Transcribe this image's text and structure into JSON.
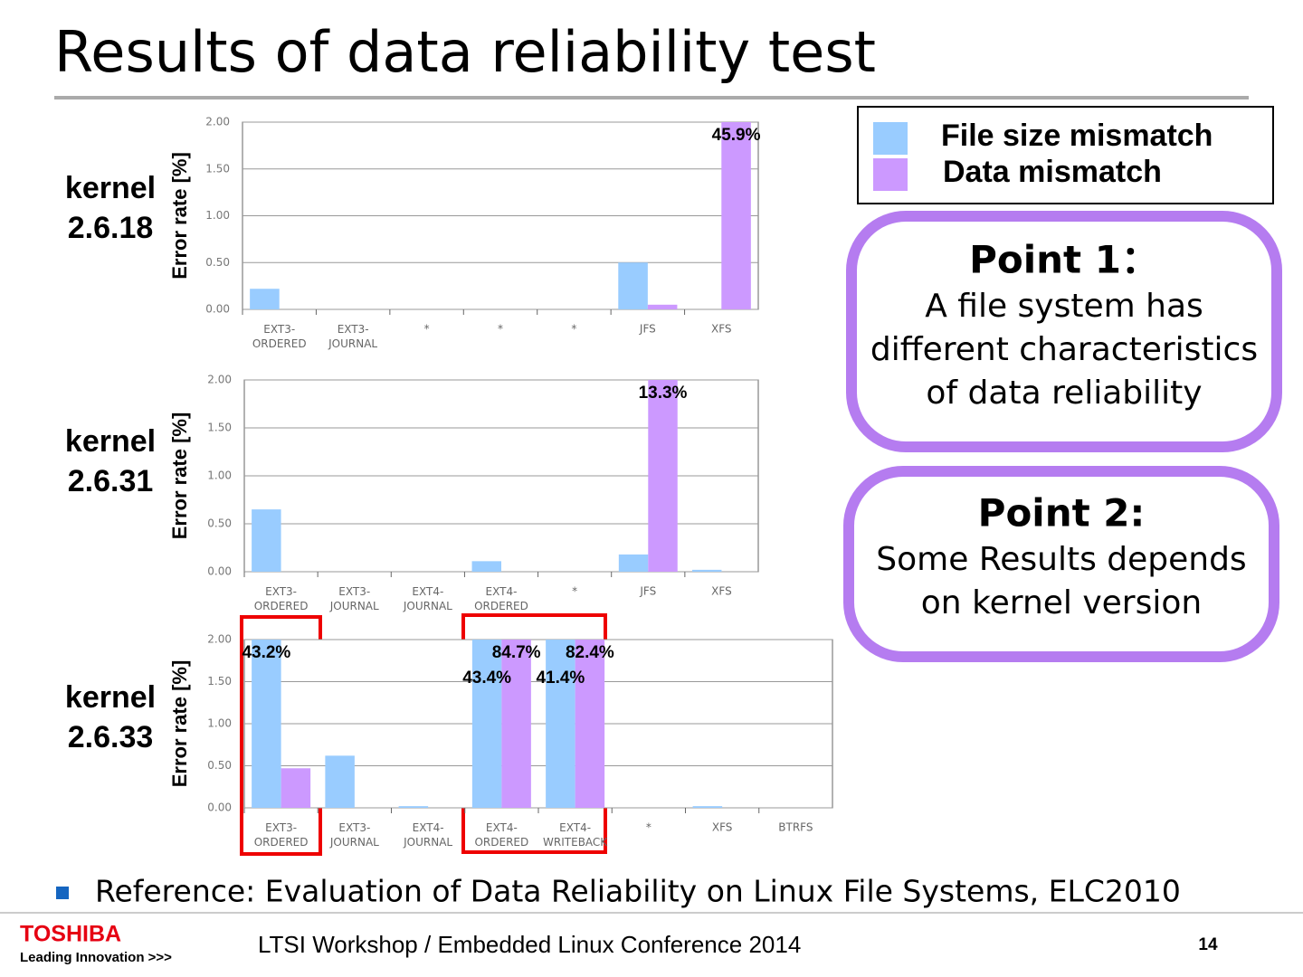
{
  "slide": {
    "title": "Results of data reliability test",
    "points": [
      {
        "heading": "Point 1：",
        "body": "A file system has\ndifferent characteristics\nof data reliability"
      },
      {
        "heading": "Point 2:",
        "body": "Some Results depends\non kernel version"
      }
    ],
    "reference": "Reference: Evaluation of Data Reliability on Linux File Systems, ELC2010",
    "logo": "TOSHIBA",
    "tagline": "Leading Innovation >>>",
    "footer": "LTSI Workshop / Embedded Linux Conference 2014",
    "page": "14"
  },
  "chart_data": [
    {
      "type": "bar",
      "title": "kernel\n2.6.18",
      "ylabel": "Error rate [%]",
      "categories": [
        "EXT3-\nORDERED",
        "EXT3-\nJOURNAL",
        "*",
        "*",
        "*",
        "JFS",
        "XFS"
      ],
      "series": [
        {
          "name": "File size mismatch",
          "color": "#99ccff",
          "values": [
            0.22,
            0,
            0,
            0,
            0,
            0.5,
            0
          ]
        },
        {
          "name": "Data mismatch",
          "color": "#cc99ff",
          "values": [
            0,
            0,
            0,
            0,
            0,
            0.05,
            45.9
          ],
          "value_labels": [
            null,
            null,
            null,
            null,
            null,
            null,
            "45.9%"
          ]
        }
      ],
      "ylim": [
        0,
        2
      ],
      "yticks": [
        {
          "value": 0,
          "label": "0.00"
        },
        {
          "value": 0.5,
          "label": "0.50"
        },
        {
          "value": 1,
          "label": "1.00"
        },
        {
          "value": 1.5,
          "label": "1.50"
        },
        {
          "value": 2,
          "label": "2.00"
        }
      ],
      "grid": true
    },
    {
      "type": "bar",
      "title": "kernel\n2.6.31",
      "ylabel": "Error rate [%]",
      "categories": [
        "EXT3-\nORDERED",
        "EXT3-\nJOURNAL",
        "EXT4-\nJOURNAL",
        "EXT4-\nORDERED",
        "*",
        "JFS",
        "XFS"
      ],
      "series": [
        {
          "name": "File size mismatch",
          "color": "#99ccff",
          "values": [
            0.65,
            0,
            0,
            0.11,
            0,
            0.18,
            0.02
          ]
        },
        {
          "name": "Data mismatch",
          "color": "#cc99ff",
          "values": [
            0,
            0,
            0,
            0,
            0,
            13.3,
            0
          ],
          "value_labels": [
            null,
            null,
            null,
            null,
            null,
            "13.3%",
            null
          ]
        }
      ],
      "ylim": [
        0,
        2
      ],
      "yticks": [
        {
          "value": 0,
          "label": "0.00"
        },
        {
          "value": 0.5,
          "label": "0.50"
        },
        {
          "value": 1,
          "label": "1.00"
        },
        {
          "value": 1.5,
          "label": "1.50"
        },
        {
          "value": 2,
          "label": "2.00"
        }
      ],
      "grid": true
    },
    {
      "type": "bar",
      "title": "kernel\n2.6.33",
      "ylabel": "Error rate [%]",
      "categories": [
        "EXT3-\nORDERED",
        "EXT3-\nJOURNAL",
        "EXT4-\nJOURNAL",
        "EXT4-\nORDERED",
        "EXT4-\nWRITEBACK",
        "*",
        "XFS",
        "BTRFS"
      ],
      "series": [
        {
          "name": "File size mismatch",
          "color": "#99ccff",
          "values": [
            43.2,
            0.62,
            0.02,
            43.4,
            41.4,
            0,
            0.02,
            0
          ],
          "value_labels": [
            "43.2%",
            null,
            null,
            "43.4%",
            "41.4%",
            null,
            null,
            null
          ]
        },
        {
          "name": "Data mismatch",
          "color": "#cc99ff",
          "values": [
            0.47,
            0,
            0,
            84.7,
            82.4,
            0,
            0,
            0
          ],
          "value_labels": [
            null,
            null,
            null,
            "84.7%",
            "82.4%",
            null,
            null,
            null
          ]
        }
      ],
      "ylim": [
        0,
        2
      ],
      "yticks": [
        {
          "value": 0,
          "label": "0.00"
        },
        {
          "value": 0.5,
          "label": "0.50"
        },
        {
          "value": 1,
          "label": "1.00"
        },
        {
          "value": 1.5,
          "label": "1.50"
        },
        {
          "value": 2,
          "label": "2.00"
        }
      ],
      "grid": true
    }
  ]
}
